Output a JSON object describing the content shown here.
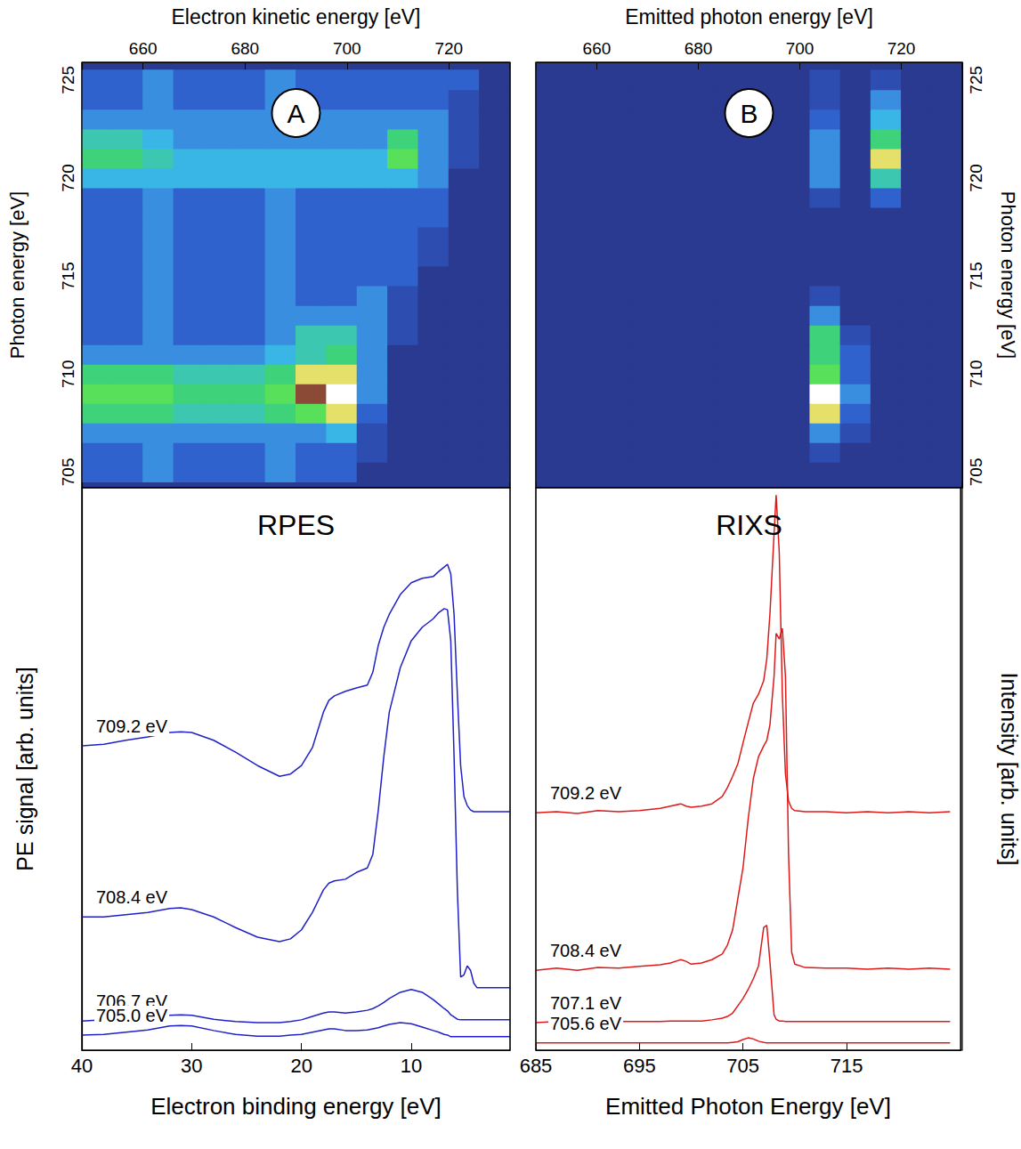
{
  "chart_data": [
    {
      "type": "heatmap",
      "panel": "A",
      "xlabel": "Electron kinetic energy [eV]",
      "ylabel": "Photon energy [eV]",
      "xlim": [
        648,
        732
      ],
      "xticks": [
        660,
        680,
        700,
        720
      ],
      "ylim": [
        704.2,
        725.9
      ],
      "yticks": [
        705,
        710,
        715,
        720,
        725
      ],
      "x": [
        651,
        657,
        663,
        669,
        675,
        681,
        687,
        693,
        699,
        705,
        711,
        717,
        723,
        729
      ],
      "y": [
        705,
        706,
        707,
        708,
        709,
        710,
        711,
        712,
        713,
        714,
        715,
        716,
        717,
        718,
        719,
        720,
        721,
        722,
        723,
        724,
        725
      ],
      "z": [
        [
          2,
          2,
          3,
          2,
          2,
          2,
          3,
          2,
          2,
          0,
          0,
          0,
          0,
          0
        ],
        [
          2,
          2,
          3,
          2,
          2,
          2,
          3,
          2,
          2,
          1,
          0,
          0,
          0,
          0
        ],
        [
          3,
          3,
          3,
          3,
          3,
          3,
          3,
          3,
          4,
          1,
          0,
          0,
          0,
          0
        ],
        [
          6,
          6,
          6,
          5,
          5,
          5,
          6,
          7,
          8,
          2,
          0,
          0,
          0,
          0
        ],
        [
          7,
          7,
          7,
          6,
          6,
          6,
          7,
          9,
          10,
          3,
          0,
          0,
          0,
          0
        ],
        [
          6,
          6,
          6,
          5,
          5,
          5,
          6,
          8,
          8,
          3,
          0,
          0,
          0,
          0
        ],
        [
          3,
          3,
          3,
          3,
          3,
          3,
          4,
          5,
          6,
          3,
          0,
          0,
          0,
          0
        ],
        [
          2,
          2,
          3,
          2,
          2,
          2,
          3,
          5,
          5,
          3,
          1,
          0,
          0,
          0
        ],
        [
          2,
          2,
          3,
          2,
          2,
          2,
          3,
          3,
          3,
          3,
          1,
          0,
          0,
          0
        ],
        [
          2,
          2,
          3,
          2,
          2,
          2,
          3,
          2,
          2,
          3,
          1,
          0,
          0,
          0
        ],
        [
          2,
          2,
          3,
          2,
          2,
          2,
          3,
          2,
          2,
          2,
          2,
          0,
          0,
          0
        ],
        [
          2,
          2,
          3,
          2,
          2,
          2,
          3,
          2,
          2,
          2,
          2,
          1,
          0,
          0
        ],
        [
          2,
          2,
          3,
          2,
          2,
          2,
          3,
          2,
          2,
          2,
          2,
          1,
          0,
          0
        ],
        [
          2,
          2,
          3,
          2,
          2,
          2,
          3,
          2,
          2,
          2,
          2,
          2,
          0,
          0
        ],
        [
          2,
          2,
          3,
          2,
          2,
          2,
          3,
          2,
          2,
          2,
          2,
          2,
          0,
          0
        ],
        [
          4,
          4,
          4,
          4,
          4,
          4,
          4,
          4,
          4,
          4,
          4,
          3,
          0,
          0
        ],
        [
          6,
          6,
          5,
          4,
          4,
          4,
          4,
          4,
          4,
          4,
          7,
          3,
          1,
          0
        ],
        [
          5,
          5,
          4,
          3,
          3,
          3,
          3,
          3,
          3,
          3,
          6,
          3,
          1,
          0
        ],
        [
          3,
          3,
          3,
          3,
          3,
          3,
          3,
          3,
          3,
          3,
          3,
          3,
          1,
          0
        ],
        [
          2,
          2,
          3,
          2,
          2,
          2,
          3,
          2,
          2,
          2,
          2,
          2,
          1,
          0
        ],
        [
          2,
          2,
          3,
          2,
          2,
          2,
          3,
          2,
          2,
          2,
          2,
          2,
          2,
          0
        ]
      ]
    },
    {
      "type": "heatmap",
      "panel": "B",
      "xlabel": "Emitted photon energy [eV]",
      "ylabel": "Photon energy [eV]",
      "xlim": [
        648,
        732
      ],
      "xticks": [
        660,
        680,
        700,
        720
      ],
      "ylim": [
        704.2,
        725.9
      ],
      "yticks": [
        705,
        710,
        715,
        720,
        725
      ],
      "x": [
        651,
        657,
        663,
        669,
        675,
        681,
        687,
        693,
        699,
        705,
        711,
        717,
        723,
        729
      ],
      "y": [
        705,
        706,
        707,
        708,
        709,
        710,
        711,
        712,
        713,
        714,
        715,
        716,
        717,
        718,
        719,
        720,
        721,
        722,
        723,
        724,
        725
      ],
      "z": [
        [
          0,
          0,
          0,
          0,
          0,
          0,
          0,
          0,
          0,
          0,
          0,
          0,
          0,
          0
        ],
        [
          0,
          0,
          0,
          0,
          0,
          0,
          0,
          0,
          0,
          1,
          0,
          0,
          0,
          0
        ],
        [
          0,
          0,
          0,
          0,
          0,
          0,
          0,
          0,
          0,
          3,
          1,
          0,
          0,
          0
        ],
        [
          0,
          0,
          0,
          0,
          0,
          0,
          0,
          0,
          0,
          8,
          2,
          0,
          0,
          0
        ],
        [
          0,
          0,
          0,
          0,
          0,
          0,
          0,
          0,
          0,
          10,
          3,
          0,
          0,
          0
        ],
        [
          0,
          0,
          0,
          0,
          0,
          0,
          0,
          0,
          0,
          7,
          2,
          0,
          0,
          0
        ],
        [
          0,
          0,
          0,
          0,
          0,
          0,
          0,
          0,
          0,
          6,
          2,
          0,
          0,
          0
        ],
        [
          0,
          0,
          0,
          0,
          0,
          0,
          0,
          0,
          0,
          6,
          1,
          0,
          0,
          0
        ],
        [
          0,
          0,
          0,
          0,
          0,
          0,
          0,
          0,
          0,
          3,
          0,
          0,
          0,
          0
        ],
        [
          0,
          0,
          0,
          0,
          0,
          0,
          0,
          0,
          0,
          1,
          0,
          0,
          0,
          0
        ],
        [
          0,
          0,
          0,
          0,
          0,
          0,
          0,
          0,
          0,
          0,
          0,
          0,
          0,
          0
        ],
        [
          0,
          0,
          0,
          0,
          0,
          0,
          0,
          0,
          0,
          0,
          0,
          0,
          0,
          0
        ],
        [
          0,
          0,
          0,
          0,
          0,
          0,
          0,
          0,
          0,
          0,
          0,
          0,
          0,
          0
        ],
        [
          0,
          0,
          0,
          0,
          0,
          0,
          0,
          0,
          0,
          0,
          0,
          0,
          0,
          0
        ],
        [
          0,
          0,
          0,
          0,
          0,
          0,
          0,
          0,
          0,
          1,
          0,
          2,
          0,
          0
        ],
        [
          0,
          0,
          0,
          0,
          0,
          0,
          0,
          0,
          0,
          3,
          0,
          5,
          0,
          0
        ],
        [
          0,
          0,
          0,
          0,
          0,
          0,
          0,
          0,
          0,
          3,
          0,
          8,
          0,
          0
        ],
        [
          0,
          0,
          0,
          0,
          0,
          0,
          0,
          0,
          0,
          3,
          0,
          6,
          0,
          0
        ],
        [
          0,
          0,
          0,
          0,
          0,
          0,
          0,
          0,
          0,
          2,
          0,
          4,
          0,
          0
        ],
        [
          0,
          0,
          0,
          0,
          0,
          0,
          0,
          0,
          0,
          1,
          0,
          3,
          0,
          0
        ],
        [
          0,
          0,
          0,
          0,
          0,
          0,
          0,
          0,
          0,
          1,
          0,
          1,
          0,
          0
        ]
      ]
    },
    {
      "type": "line",
      "title": "RPES",
      "xlabel": "Electron binding energy [eV]",
      "ylabel": "PE signal [arb. units]",
      "xlim": [
        40,
        1
      ],
      "xticks": [
        40,
        30,
        20,
        10
      ],
      "ylim": [
        0,
        100
      ],
      "tick_labels": "x",
      "x": [
        40,
        38,
        36,
        34,
        32,
        31,
        30,
        28,
        26,
        24,
        22,
        21,
        20,
        19,
        18,
        17.5,
        17,
        16,
        15,
        14,
        13.5,
        13,
        12.5,
        12,
        11,
        10,
        9,
        8,
        7.5,
        7,
        6.7,
        6.4,
        6.1,
        5.8,
        5.5,
        5.2,
        4.9,
        4.6,
        4.3,
        4,
        3,
        2,
        1
      ],
      "series": [
        {
          "name": "709.2 eV",
          "color": "#2020c8",
          "values": [
            54.1,
            54.4,
            55.1,
            55.7,
            56.5,
            56.6,
            56.5,
            55.1,
            53.0,
            50.6,
            48.7,
            49.1,
            50.6,
            53.8,
            60.1,
            62.2,
            63.0,
            63.8,
            64.4,
            64.9,
            67.2,
            72.0,
            75.2,
            77.5,
            81.0,
            83.1,
            83.9,
            84.2,
            85.1,
            85.9,
            86.4,
            84.7,
            77.5,
            63.3,
            50.6,
            45.1,
            43.5,
            42.7,
            42.4,
            42.4,
            42.4,
            42.4,
            42.4
          ]
        },
        {
          "name": "708.4 eV",
          "color": "#2020c8",
          "values": [
            23.7,
            23.7,
            24.1,
            24.5,
            25.2,
            25.3,
            25.0,
            23.7,
            21.8,
            20.1,
            19.3,
            19.8,
            21.4,
            24.5,
            28.5,
            29.7,
            30.1,
            30.4,
            31.6,
            32.4,
            34.8,
            42.7,
            52.2,
            60.1,
            68.0,
            72.8,
            75.2,
            76.7,
            77.8,
            78.5,
            78.3,
            72.8,
            52.2,
            28.5,
            13.0,
            13.4,
            15.0,
            14.2,
            11.9,
            11.1,
            11.1,
            11.1,
            11.1
          ]
        },
        {
          "name": "706.7 eV",
          "color": "#2020c8",
          "values": [
            5.2,
            5.4,
            5.5,
            5.9,
            6.2,
            6.3,
            6.2,
            5.5,
            5.1,
            4.9,
            4.9,
            5.1,
            5.4,
            6.0,
            6.6,
            6.8,
            6.8,
            6.6,
            6.8,
            7.1,
            7.4,
            7.9,
            8.5,
            9.2,
            10.3,
            10.8,
            10.3,
            9.0,
            8.2,
            7.4,
            7.0,
            6.3,
            5.9,
            5.5,
            5.4,
            5.4,
            5.4,
            5.4,
            5.4,
            5.4,
            5.4,
            5.4,
            5.4
          ]
        },
        {
          "name": "705.0 eV",
          "color": "#2020c8",
          "values": [
            2.7,
            2.8,
            3.2,
            3.6,
            4.3,
            4.4,
            4.3,
            3.5,
            2.8,
            2.5,
            2.5,
            2.7,
            2.8,
            3.2,
            3.6,
            3.8,
            3.8,
            3.5,
            3.5,
            3.6,
            3.8,
            4.0,
            4.3,
            4.6,
            4.9,
            4.7,
            4.1,
            3.5,
            3.2,
            2.8,
            2.7,
            2.4,
            2.4,
            2.4,
            2.4,
            2.4,
            2.4,
            2.4,
            2.4,
            2.4,
            2.4,
            2.4,
            2.4
          ]
        }
      ]
    },
    {
      "type": "line",
      "title": "RIXS",
      "xlabel": "Emitted Photon Energy [eV]",
      "ylabel": "Intensity [arb. units]",
      "xlim": [
        685,
        726
      ],
      "xticks": [
        685,
        695,
        705,
        715
      ],
      "ylim": [
        0,
        100
      ],
      "tick_labels": "x",
      "x": [
        685,
        687,
        689,
        691,
        693,
        695,
        697,
        698,
        699,
        699.5,
        700,
        701,
        702,
        703,
        703.5,
        704,
        704.5,
        705,
        705.5,
        706,
        706.5,
        707,
        707.3,
        707.6,
        708,
        708.2,
        708.5,
        708.8,
        709.1,
        709.4,
        709.7,
        710,
        711,
        713,
        715,
        717,
        719,
        721,
        723,
        725
      ],
      "series": [
        {
          "name": "709.2 eV",
          "color": "#dd1a1a",
          "values": [
            42.2,
            42.4,
            42.1,
            42.6,
            42.4,
            42.6,
            43.0,
            43.4,
            43.8,
            43.4,
            43.2,
            43.4,
            43.8,
            45.1,
            46.7,
            48.7,
            50.9,
            54.6,
            58.2,
            61.7,
            63.3,
            65.7,
            69.6,
            77.5,
            91.8,
            98.7,
            88.6,
            63.3,
            49.1,
            44.3,
            43.0,
            42.6,
            42.4,
            42.4,
            42.2,
            42.4,
            42.2,
            42.4,
            42.2,
            42.4
          ]
        },
        {
          "name": "708.4 eV",
          "color": "#dd1a1a",
          "values": [
            14.2,
            14.6,
            14.2,
            14.7,
            14.6,
            14.9,
            15.2,
            15.5,
            16.1,
            15.8,
            15.3,
            15.5,
            16.1,
            17.1,
            18.7,
            21.4,
            26.9,
            32.4,
            41.1,
            48.3,
            52.2,
            54.1,
            55.1,
            57.8,
            66.5,
            74.1,
            73.1,
            75.0,
            66.5,
            34.8,
            17.4,
            15.3,
            14.7,
            14.6,
            14.6,
            14.4,
            14.6,
            14.4,
            14.6,
            14.4
          ]
        },
        {
          "name": "707.1 eV",
          "color": "#dd1a1a",
          "values": [
            4.9,
            5.1,
            5.1,
            5.1,
            5.1,
            5.1,
            5.1,
            5.2,
            5.2,
            5.2,
            5.2,
            5.2,
            5.4,
            5.7,
            6.0,
            6.6,
            7.9,
            9.2,
            10.8,
            12.7,
            15.0,
            21.8,
            22.2,
            15.8,
            6.3,
            5.5,
            5.2,
            5.2,
            5.1,
            5.1,
            5.1,
            5.1,
            5.1,
            5.1,
            5.1,
            5.1,
            5.1,
            5.1,
            5.1,
            5.1
          ]
        },
        {
          "name": "705.6 eV",
          "color": "#dd1a1a",
          "values": [
            1.3,
            1.3,
            1.3,
            1.3,
            1.3,
            1.3,
            1.3,
            1.3,
            1.3,
            1.3,
            1.3,
            1.3,
            1.3,
            1.3,
            1.3,
            1.4,
            1.5,
            1.9,
            2.2,
            2.0,
            1.6,
            1.4,
            1.3,
            1.3,
            1.3,
            1.3,
            1.3,
            1.3,
            1.3,
            1.3,
            1.3,
            1.3,
            1.3,
            1.3,
            1.3,
            1.3,
            1.3,
            1.3,
            1.3,
            1.3
          ]
        }
      ]
    }
  ]
}
